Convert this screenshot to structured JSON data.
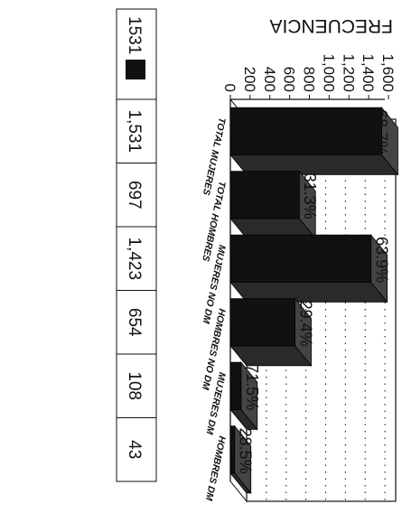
{
  "chart_data": {
    "type": "bar",
    "orientation": "rotated 90 degrees clockwise (3D bars)",
    "ylabel": "FRECUENCIA",
    "ylim": [
      0,
      1600
    ],
    "yticks": [
      "0",
      "200",
      "400",
      "600",
      "800",
      "1,000",
      "1,200",
      "1,400",
      "1,600"
    ],
    "categories": [
      "TOTAL MUJERES",
      "TOTAL HOMBRES",
      "MUJERES NO DM",
      "HOMBRES NO DM",
      "MUJERES DM",
      "HOMBRES DM"
    ],
    "values": [
      1531,
      697,
      1423,
      654,
      108,
      43
    ],
    "percent_labels": [
      "68.7%",
      "31.3%",
      "63.9%",
      "29.4%",
      "71.5%",
      "28.5%"
    ],
    "table": {
      "legend_label": "1531",
      "values_display": [
        "1,531",
        "697",
        "1,423",
        "654",
        "108",
        "43"
      ]
    },
    "grid": true,
    "legend": "bottom",
    "colors": {
      "bar": "#111111",
      "bar_side": "#2a2a2a",
      "bar_top": "#444444",
      "grid": "#222222"
    }
  }
}
